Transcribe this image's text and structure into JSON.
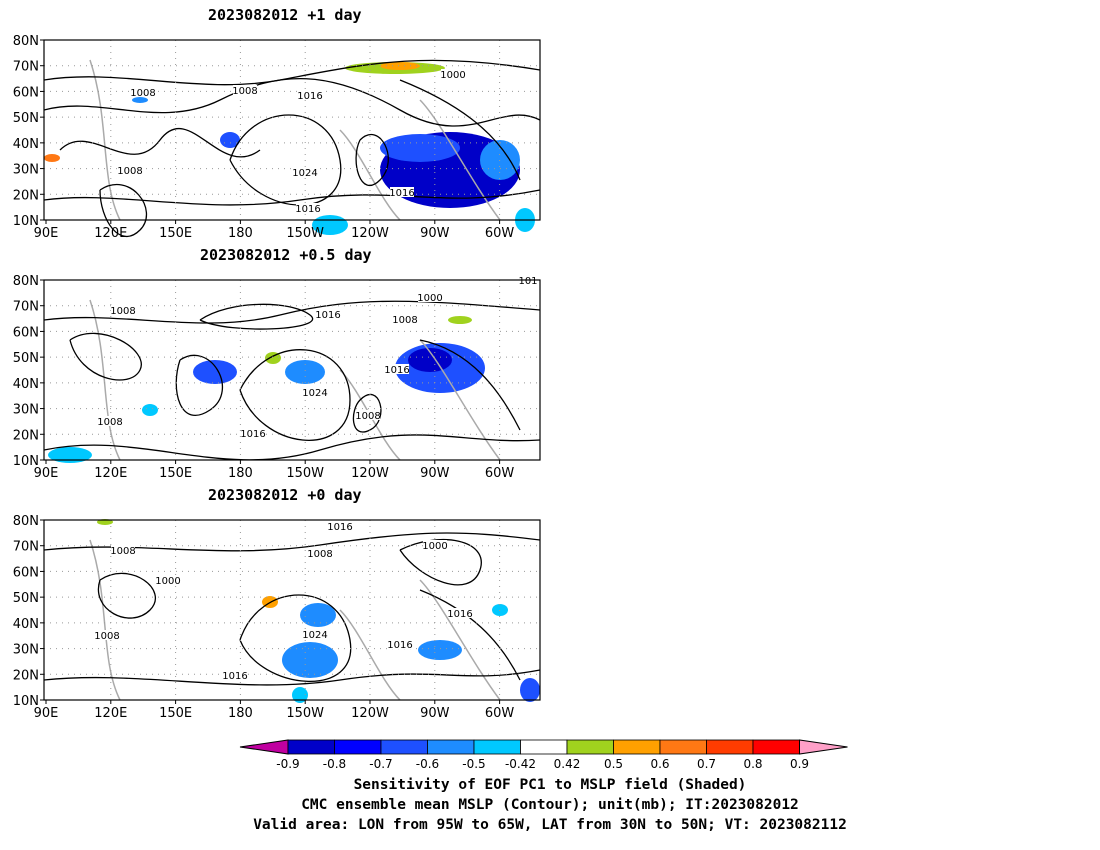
{
  "panels": [
    {
      "title": "2023082012  +1 day",
      "contour_labels": [
        "1008",
        "1008",
        "1016",
        "1000",
        "1008",
        "1024",
        "1016",
        "1016"
      ]
    },
    {
      "title": "2023082012  +0.5 day",
      "contour_labels": [
        "1008",
        "1016",
        "1000",
        "1008",
        "1024",
        "1016",
        "1008",
        "1016",
        "1008",
        "101"
      ]
    },
    {
      "title": "2023082012  +0 day",
      "contour_labels": [
        "1008",
        "1008",
        "1016",
        "1000",
        "1000",
        "1008",
        "1024",
        "1016",
        "1016",
        "1016"
      ]
    }
  ],
  "axes": {
    "lat_labels": [
      "80N",
      "70N",
      "60N",
      "50N",
      "40N",
      "30N",
      "20N",
      "10N"
    ],
    "lon_labels": [
      "90E",
      "120E",
      "150E",
      "180",
      "150W",
      "120W",
      "90W",
      "60W"
    ]
  },
  "colorbar": {
    "labels": [
      "-0.9",
      "-0.8",
      "-0.7",
      "-0.6",
      "-0.5",
      "-0.42",
      "0.42",
      "0.5",
      "0.6",
      "0.7",
      "0.8",
      "0.9"
    ],
    "colors": [
      "#c000a0",
      "#0000c8",
      "#0000ff",
      "#1e50ff",
      "#1e8cff",
      "#00c8ff",
      "#ffffff",
      "#a0d21e",
      "#ffa000",
      "#ff7814",
      "#ff3c00",
      "#ff0000",
      "#ffa0c8"
    ]
  },
  "footer": {
    "line1": "Sensitivity of EOF PC1 to MSLP field (Shaded)",
    "line2": "CMC ensemble mean MSLP (Contour); unit(mb); IT:2023082012",
    "line3": "Valid area: LON from 95W to 65W, LAT from 30N to 50N; VT: 2023082112"
  }
}
